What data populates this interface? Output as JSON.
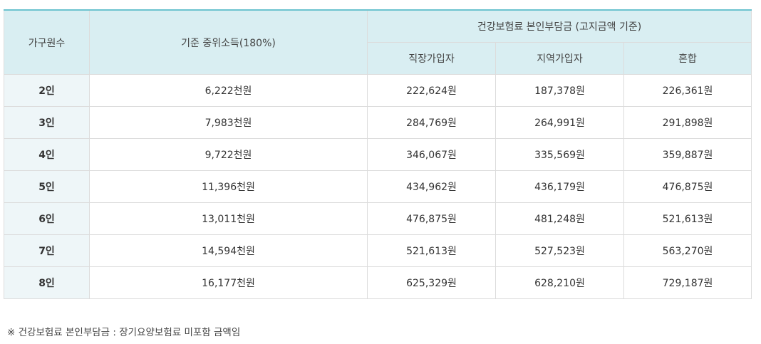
{
  "table": {
    "header": {
      "household": "가구원수",
      "median_income": "기준 중위소득(180%)",
      "premium_group": "건강보험료 본인부담금 (고지금액 기준)",
      "sub": {
        "employee": "직장가입자",
        "regional": "지역가입자",
        "mixed": "혼합"
      }
    },
    "rows": [
      {
        "household": "2인",
        "income": "6,222천원",
        "employee": "222,624원",
        "regional": "187,378원",
        "mixed": "226,361원"
      },
      {
        "household": "3인",
        "income": "7,983천원",
        "employee": "284,769원",
        "regional": "264,991원",
        "mixed": "291,898원"
      },
      {
        "household": "4인",
        "income": "9,722천원",
        "employee": "346,067원",
        "regional": "335,569원",
        "mixed": "359,887원"
      },
      {
        "household": "5인",
        "income": "11,396천원",
        "employee": "434,962원",
        "regional": "436,179원",
        "mixed": "476,875원"
      },
      {
        "household": "6인",
        "income": "13,011천원",
        "employee": "476,875원",
        "regional": "481,248원",
        "mixed": "521,613원"
      },
      {
        "household": "7인",
        "income": "14,594천원",
        "employee": "521,613원",
        "regional": "527,523원",
        "mixed": "563,270원"
      },
      {
        "household": "8인",
        "income": "16,177천원",
        "employee": "625,329원",
        "regional": "628,210원",
        "mixed": "729,187원"
      }
    ]
  },
  "footnote": "※ 건강보험료 본인부담금 : 장기요양보험료 미포함 금액임",
  "colors": {
    "header_bg": "#d9eef2",
    "label_bg": "#eef6f8",
    "top_border": "#6cc3cf",
    "grid": "#dcdcdc"
  }
}
